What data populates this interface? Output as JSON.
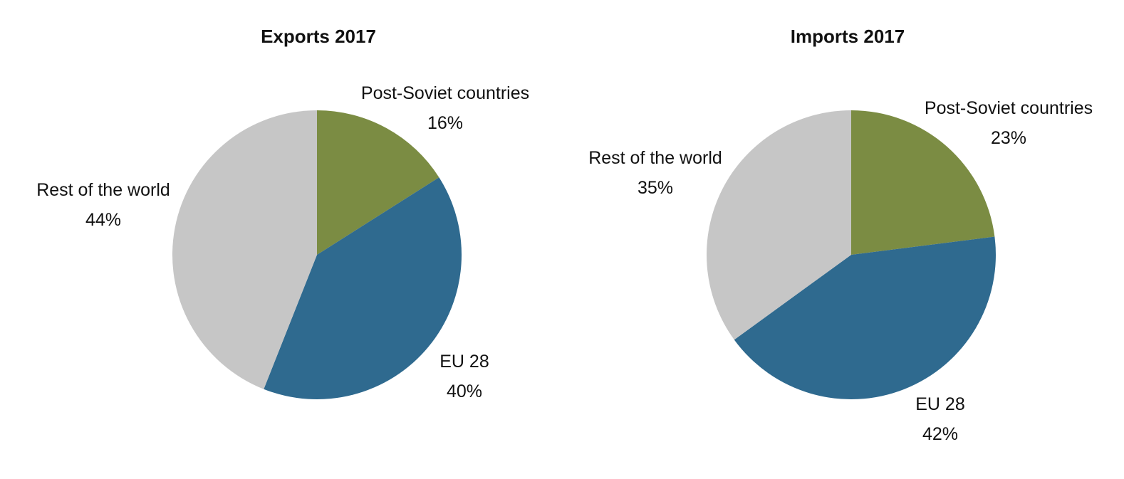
{
  "colors": {
    "post_soviet": "#7b8c43",
    "eu28": "#2f6a8f",
    "rest": "#c6c6c6"
  },
  "chart_data": [
    {
      "type": "pie",
      "title": "Exports 2017",
      "categories": [
        "Post-Soviet countries",
        "EU 28",
        "Rest of the world"
      ],
      "values": [
        16,
        40,
        44
      ],
      "labels": [
        "16%",
        "40%",
        "44%"
      ]
    },
    {
      "type": "pie",
      "title": "Imports 2017",
      "categories": [
        "Post-Soviet countries",
        "EU 28",
        "Rest of the world"
      ],
      "values": [
        23,
        42,
        35
      ],
      "labels": [
        "23%",
        "42%",
        "35%"
      ]
    }
  ]
}
